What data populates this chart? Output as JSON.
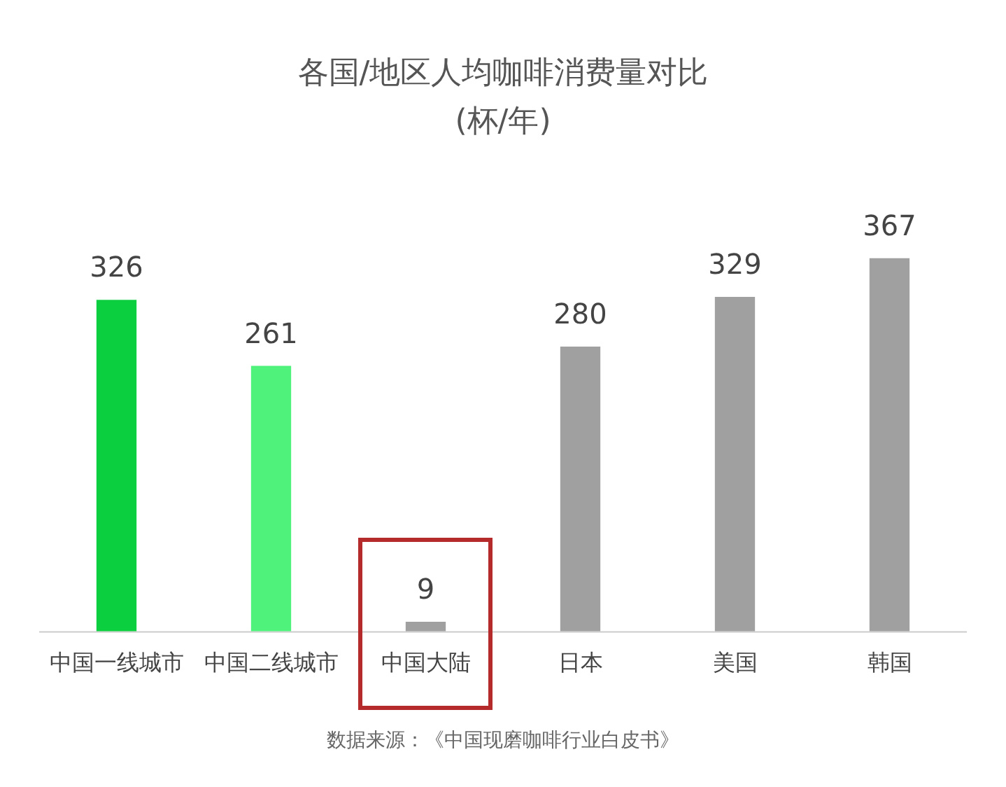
{
  "chart_data": {
    "type": "bar",
    "title": "各国/地区人均咖啡消费量对比",
    "subtitle": "(杯/年)",
    "categories": [
      "中国一线城市",
      "中国二线城市",
      "中国大陆",
      "日本",
      "美国",
      "韩国"
    ],
    "values": [
      326,
      261,
      9,
      280,
      329,
      367
    ],
    "colors": [
      "#0ccf3f",
      "#4ff27a",
      "#a0a0a0",
      "#a0a0a0",
      "#a0a0a0",
      "#a0a0a0"
    ],
    "data_labels": true,
    "grid": false,
    "legend": false,
    "tick_labels": "x",
    "annotations": [
      "数据来源：《中国现磨咖啡行业白皮书》"
    ]
  }
}
